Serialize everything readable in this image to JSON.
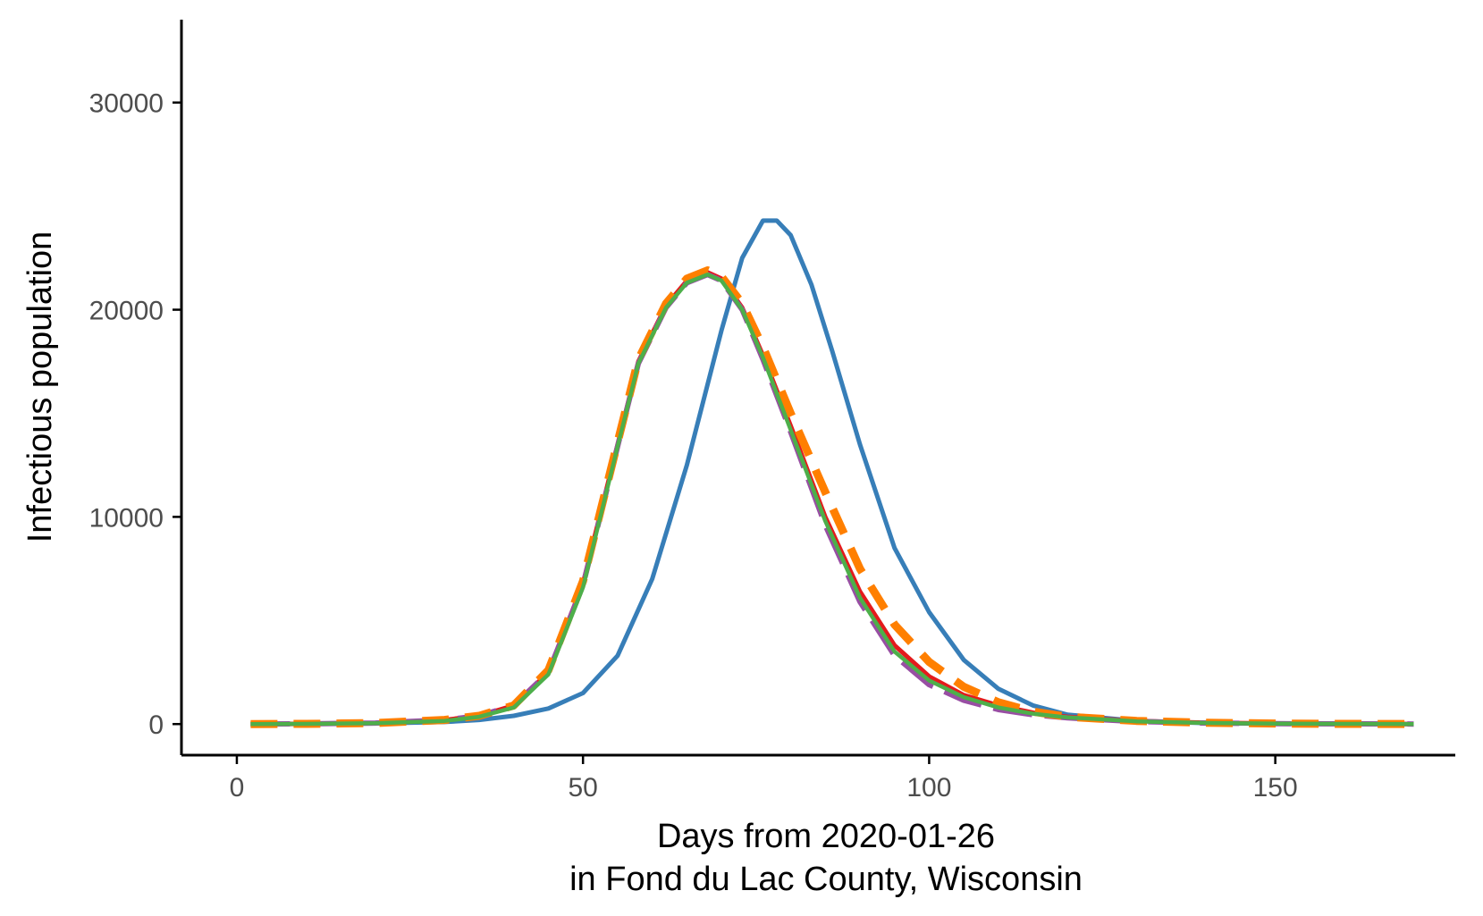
{
  "chart_data": {
    "type": "line",
    "title": "",
    "xlabel_line1": "Days from 2020-01-26",
    "xlabel_line2": "in Fond du Lac County, Wisconsin",
    "ylabel": "Infectious population",
    "xlim": [
      -8,
      176
    ],
    "ylim": [
      -1500,
      34000
    ],
    "x_ticks": [
      0,
      50,
      100,
      150
    ],
    "y_ticks": [
      0,
      10000,
      20000,
      30000
    ],
    "grid": false,
    "legend": "none",
    "series": [
      {
        "color": "#377eb8",
        "dash": "solid",
        "x": [
          2,
          10,
          20,
          30,
          35,
          40,
          45,
          50,
          55,
          60,
          65,
          70,
          73,
          76,
          78,
          80,
          83,
          86,
          90,
          95,
          100,
          105,
          110,
          115,
          120,
          130,
          140,
          150,
          160,
          170
        ],
        "y": [
          0,
          10,
          30,
          100,
          200,
          400,
          750,
          1500,
          3300,
          7000,
          12500,
          19000,
          22500,
          24300,
          24300,
          23600,
          21200,
          18000,
          13500,
          8500,
          5400,
          3100,
          1700,
          900,
          450,
          150,
          50,
          15,
          5,
          0
        ]
      },
      {
        "color": "#e41a1c",
        "dash": "solid",
        "x": [
          2,
          10,
          20,
          30,
          35,
          40,
          45,
          50,
          55,
          58,
          62,
          65,
          68,
          70,
          73,
          76,
          80,
          85,
          90,
          95,
          100,
          105,
          110,
          115,
          120,
          130,
          140,
          150,
          160,
          170
        ],
        "y": [
          0,
          10,
          50,
          200,
          400,
          900,
          2500,
          6800,
          13500,
          17500,
          20200,
          21400,
          21800,
          21500,
          20100,
          17800,
          14400,
          10000,
          6400,
          3800,
          2300,
          1400,
          900,
          550,
          350,
          150,
          60,
          25,
          10,
          0
        ]
      },
      {
        "color": "#984ea3",
        "dash": "long-dash",
        "x": [
          2,
          10,
          20,
          30,
          35,
          40,
          45,
          50,
          55,
          58,
          62,
          65,
          68,
          70,
          73,
          76,
          80,
          85,
          90,
          95,
          100,
          105,
          110,
          115,
          120,
          130,
          140,
          150,
          160,
          170
        ],
        "y": [
          0,
          10,
          50,
          200,
          400,
          900,
          2500,
          6700,
          13400,
          17400,
          20100,
          21300,
          21700,
          21400,
          20000,
          17600,
          14100,
          9600,
          5900,
          3300,
          1900,
          1150,
          700,
          450,
          300,
          120,
          50,
          20,
          8,
          0
        ]
      },
      {
        "color": "#ff7f00",
        "dash": "dashed",
        "x": [
          2,
          10,
          20,
          30,
          35,
          40,
          45,
          50,
          55,
          58,
          62,
          65,
          68,
          70,
          73,
          76,
          80,
          85,
          90,
          95,
          100,
          105,
          110,
          115,
          120,
          130,
          140,
          150,
          160,
          170
        ],
        "y": [
          0,
          10,
          50,
          200,
          400,
          900,
          2600,
          6900,
          13600,
          17600,
          20300,
          21500,
          21900,
          21600,
          20300,
          18200,
          15000,
          11200,
          7500,
          4800,
          3000,
          1800,
          1050,
          600,
          350,
          150,
          60,
          25,
          10,
          0
        ]
      },
      {
        "color": "#4daf4a",
        "dash": "solid",
        "x": [
          2,
          10,
          20,
          30,
          35,
          40,
          45,
          50,
          55,
          58,
          62,
          65,
          68,
          70,
          73,
          76,
          80,
          85,
          90,
          95,
          100,
          105,
          110,
          115,
          120,
          130,
          140,
          150,
          160,
          170
        ],
        "y": [
          0,
          10,
          40,
          150,
          350,
          800,
          2400,
          6600,
          13400,
          17400,
          20100,
          21300,
          21700,
          21400,
          20000,
          17700,
          14200,
          9800,
          6100,
          3500,
          2100,
          1300,
          800,
          500,
          320,
          130,
          55,
          22,
          9,
          0
        ]
      }
    ]
  }
}
